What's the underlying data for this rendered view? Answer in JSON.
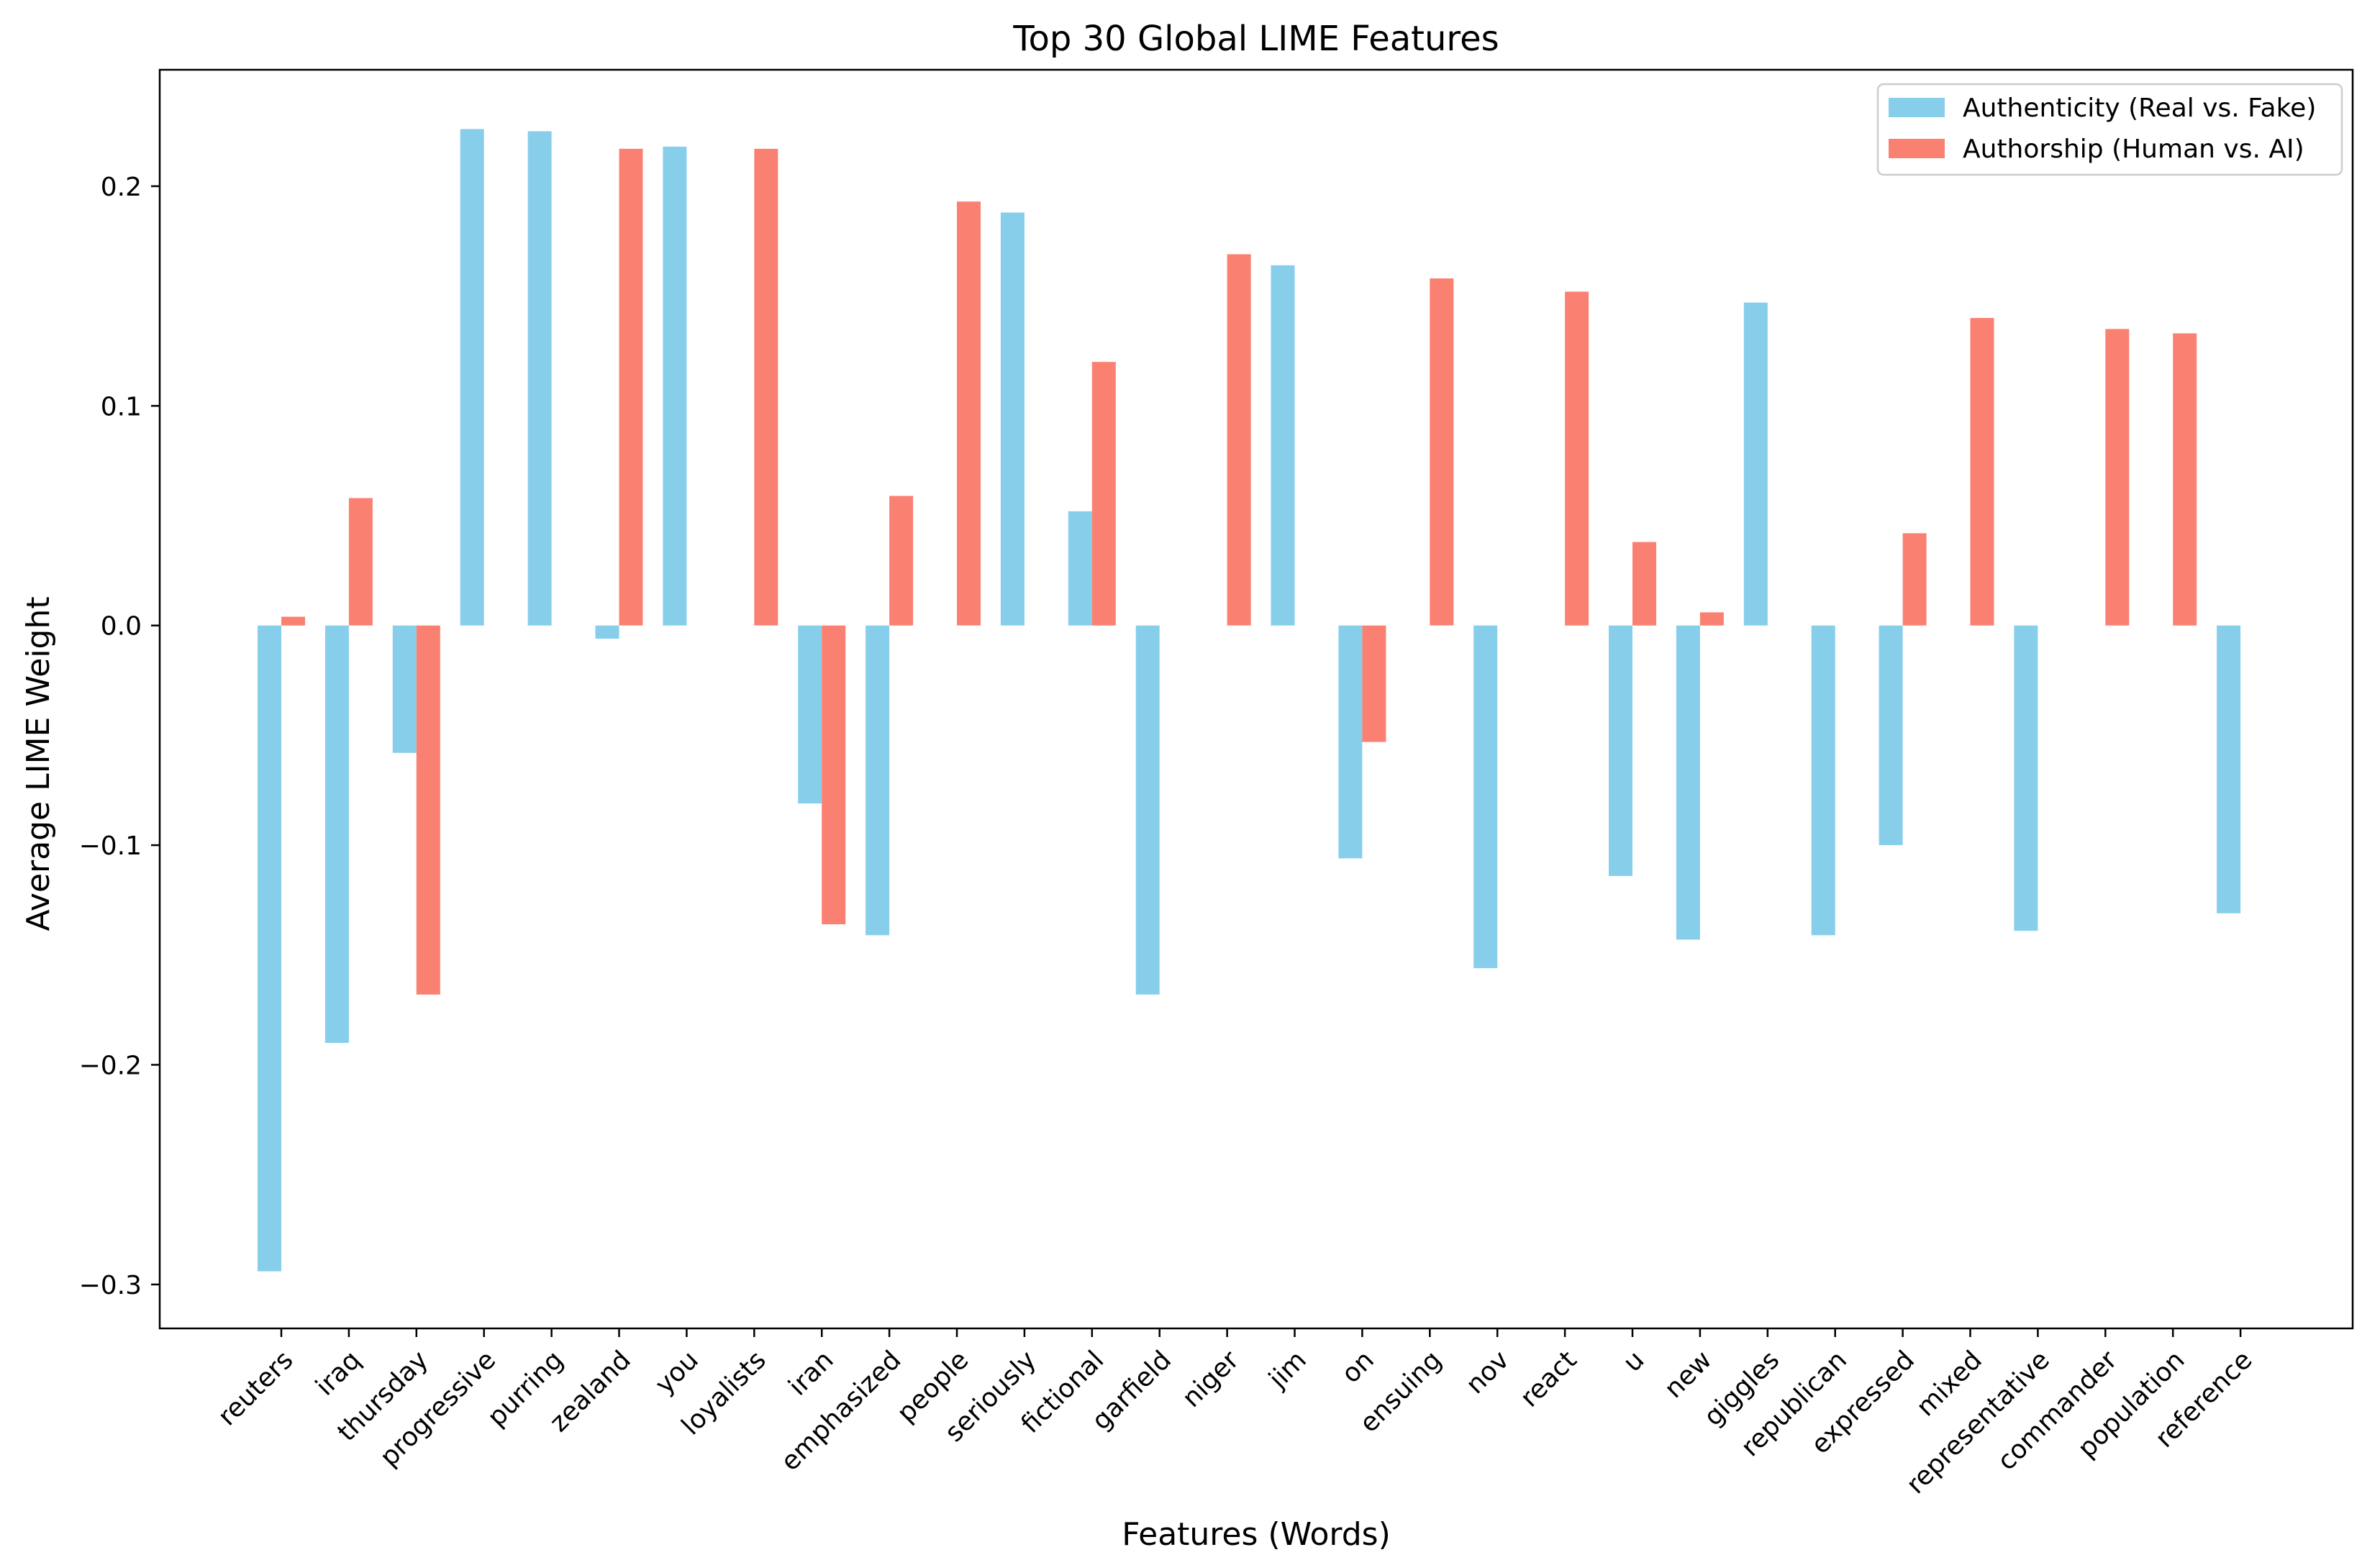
{
  "chart_data": {
    "type": "bar",
    "title": "Top 30 Global LIME Features",
    "xlabel": "Features (Words)",
    "ylabel": "Average LIME Weight",
    "ylim": [
      -0.32,
      0.253
    ],
    "yticks": [
      -0.3,
      -0.2,
      -0.1,
      0.0,
      0.1,
      0.2
    ],
    "ytick_labels": [
      "−0.3",
      "−0.2",
      "−0.1",
      "0.0",
      "0.1",
      "0.2"
    ],
    "grid": false,
    "legend_position": "top-right",
    "categories": [
      "reuters",
      "iraq",
      "thursday",
      "progressive",
      "purring",
      "zealand",
      "you",
      "loyalists",
      "iran",
      "emphasized",
      "people",
      "seriously",
      "fictional",
      "garfield",
      "niger",
      "jim",
      "on",
      "ensuing",
      "nov",
      "react",
      "u",
      "new",
      "giggles",
      "republican",
      "expressed",
      "mixed",
      "representative",
      "commander",
      "population",
      "reference"
    ],
    "series": [
      {
        "name": "Authenticity (Real vs. Fake)",
        "color": "#87CEEB",
        "values": [
          -0.294,
          -0.19,
          -0.058,
          0.226,
          0.225,
          -0.006,
          0.218,
          0.0,
          -0.081,
          -0.141,
          0.0,
          0.188,
          0.052,
          -0.168,
          0.0,
          0.164,
          -0.106,
          0.0,
          -0.156,
          0.0,
          -0.114,
          -0.143,
          0.147,
          -0.141,
          -0.1,
          0.0,
          -0.139,
          0.0,
          0.0,
          -0.131
        ]
      },
      {
        "name": "Authorship (Human vs. AI)",
        "color": "#FA8072",
        "values": [
          0.004,
          0.058,
          -0.168,
          0.0,
          0.0,
          0.217,
          0.0,
          0.217,
          -0.136,
          0.059,
          0.193,
          0.0,
          0.12,
          0.0,
          0.169,
          0.0,
          -0.053,
          0.158,
          0.0,
          0.152,
          0.038,
          0.006,
          0.0,
          0.0,
          0.042,
          0.14,
          0.0,
          0.135,
          0.133,
          0.0
        ]
      }
    ]
  }
}
